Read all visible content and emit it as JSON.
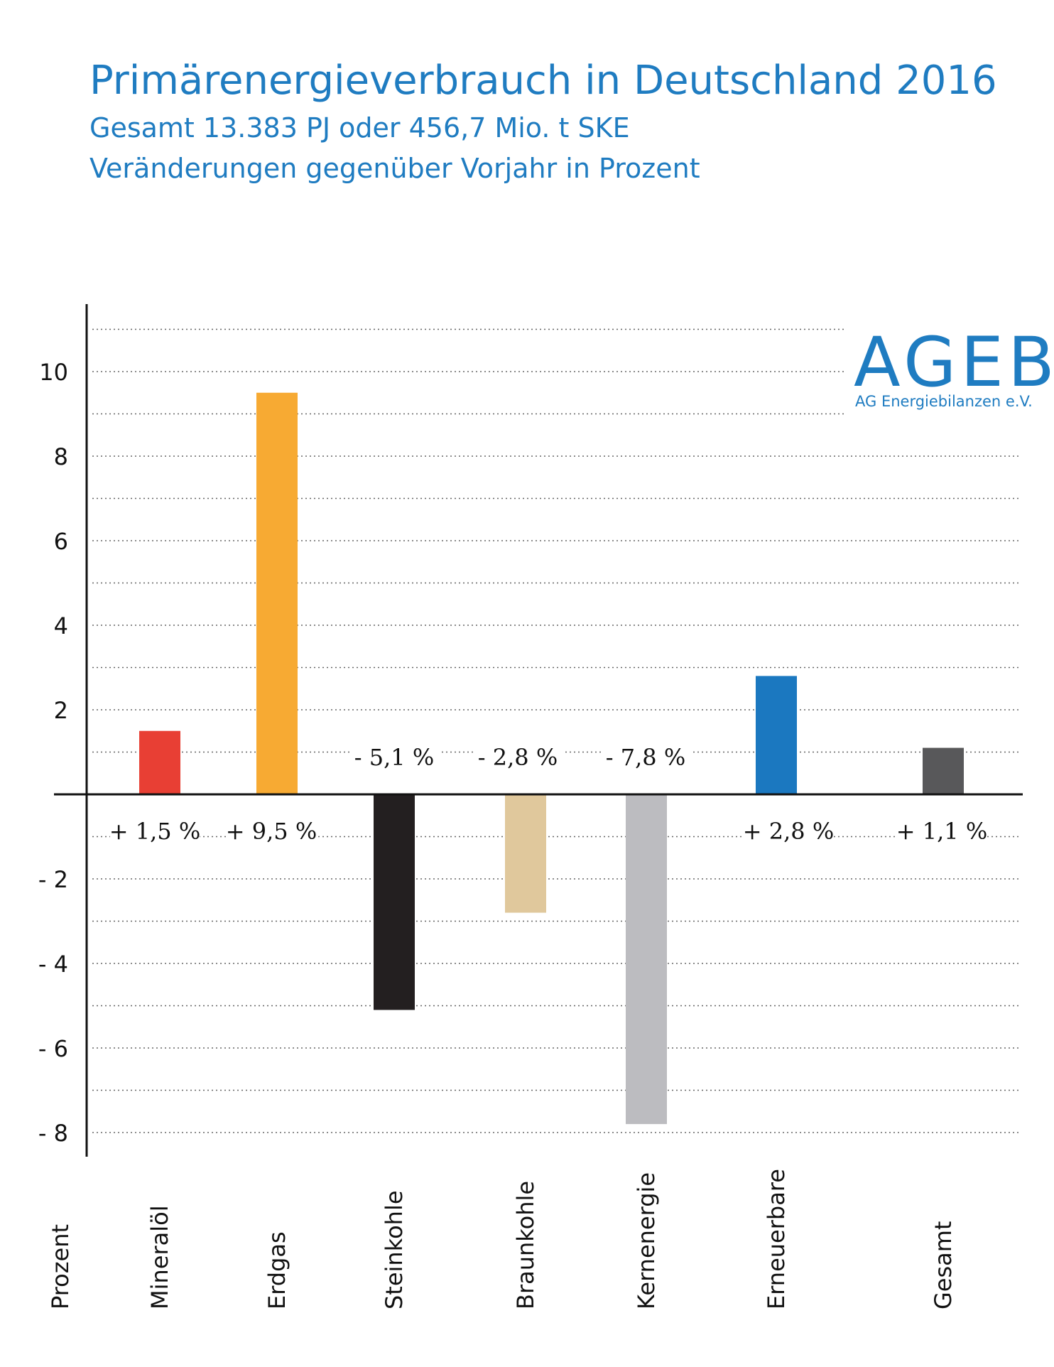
{
  "chart_data": {
    "type": "bar",
    "title": "Primärenergieverbrauch in Deutschland 2016",
    "subtitle": "Gesamt 13.383 PJ oder 456,7 Mio. t SKE",
    "subtitle2": "Veränderungen gegenüber Vorjahr in Prozent",
    "ylabel": "Prozent",
    "xlabel": "",
    "ylim": [
      -8,
      11.5
    ],
    "yticks": [
      10,
      8,
      6,
      4,
      2,
      -2,
      -4,
      -6,
      -8
    ],
    "ytick_labels": [
      "10",
      "8",
      "6",
      "4",
      "2",
      "- 2",
      "- 4",
      "- 6",
      "- 8"
    ],
    "grid": true,
    "categories": [
      "Mineralöl",
      "Erdgas",
      "Steinkohle",
      "Braunkohle",
      "Kernenergie",
      "Erneuerbare",
      "Gesamt"
    ],
    "values": [
      1.5,
      9.5,
      -5.1,
      -2.8,
      -7.8,
      2.8,
      1.1
    ],
    "data_labels": [
      "+ 1,5 %",
      "+ 9,5 %",
      "- 5,1 %",
      "- 2,8 %",
      "- 7,8 %",
      "+ 2,8 %",
      "+ 1,1 %"
    ],
    "colors": [
      "#e83f34",
      "#f7aa33",
      "#231f20",
      "#e0c89c",
      "#bcbcc0",
      "#1b78c0",
      "#58585a"
    ]
  },
  "logo": {
    "name": "AGEB",
    "subtitle": "AG Energiebilanzen e.V."
  }
}
